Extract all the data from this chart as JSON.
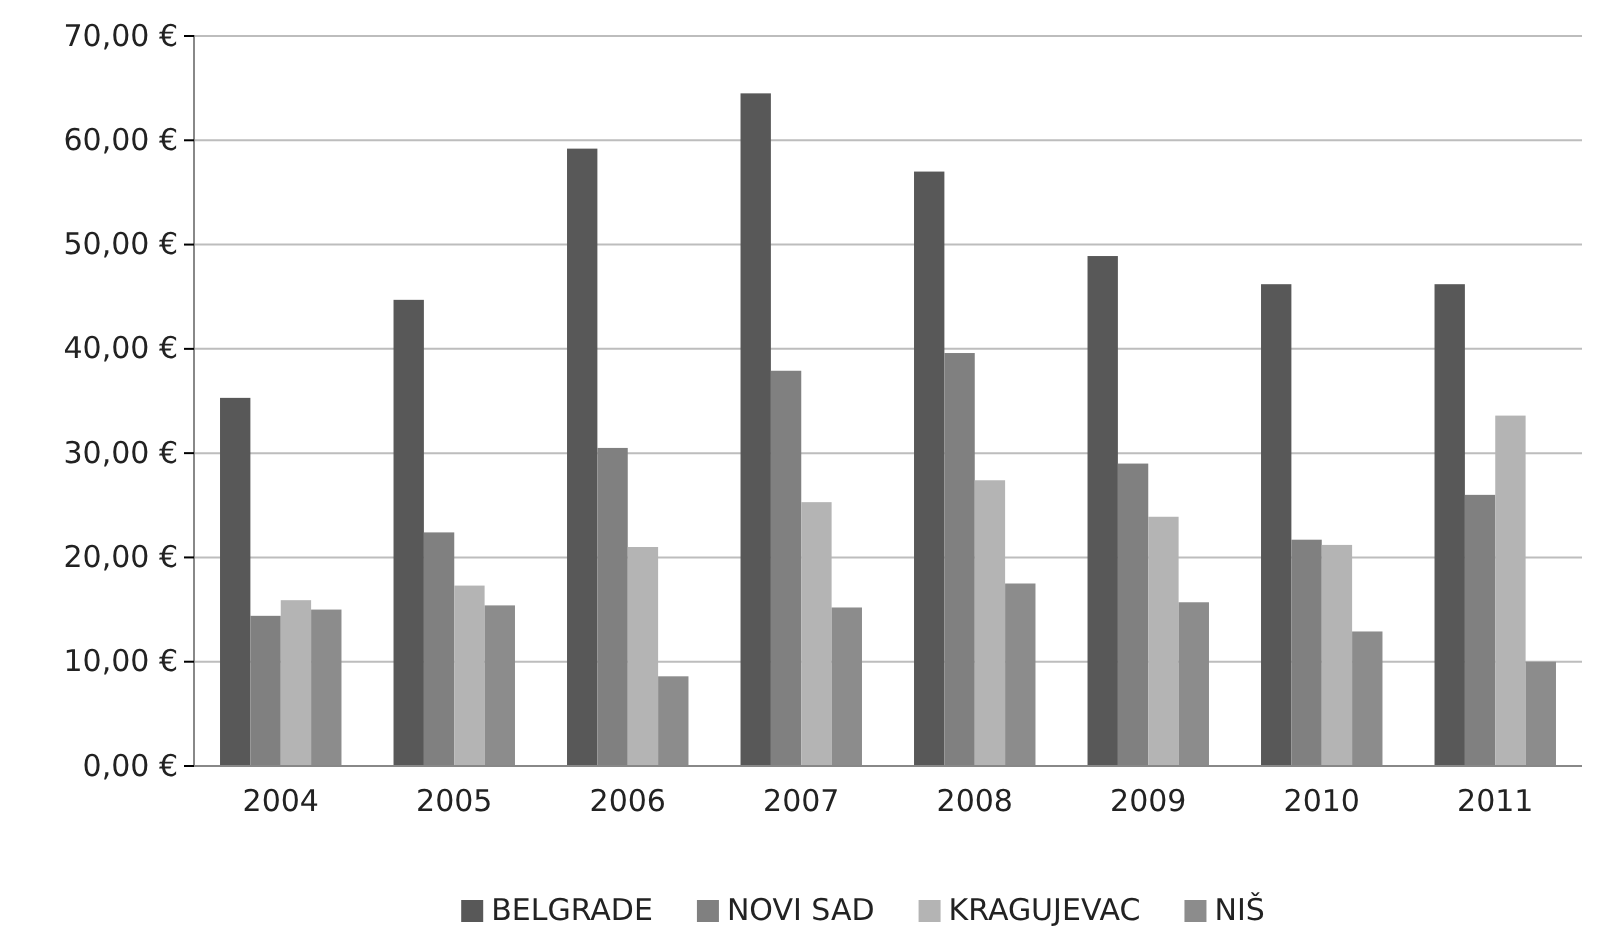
{
  "chart_data": {
    "type": "bar",
    "categories": [
      "2004",
      "2005",
      "2006",
      "2007",
      "2008",
      "2009",
      "2010",
      "2011"
    ],
    "series": [
      {
        "name": "BELGRADE",
        "color": "#585858",
        "values": [
          35.3,
          44.7,
          59.2,
          64.5,
          57.0,
          48.9,
          46.2,
          46.2
        ]
      },
      {
        "name": "NOVI SAD",
        "color": "#808080",
        "values": [
          14.4,
          22.4,
          30.5,
          37.9,
          39.6,
          29.0,
          21.7,
          26.0
        ]
      },
      {
        "name": "KRAGUJEVAC",
        "color": "#b4b4b4",
        "values": [
          15.9,
          17.3,
          21.0,
          25.3,
          27.4,
          23.9,
          21.2,
          33.6
        ]
      },
      {
        "name": "NIŠ",
        "color": "#8c8c8c",
        "values": [
          15.0,
          15.4,
          8.6,
          15.2,
          17.5,
          15.7,
          12.9,
          10.0
        ]
      }
    ],
    "ylim": [
      0,
      70
    ],
    "yticks": [
      {
        "value": 0,
        "label": "0,00 €"
      },
      {
        "value": 10,
        "label": "10,00 €"
      },
      {
        "value": 20,
        "label": "20,00 €"
      },
      {
        "value": 30,
        "label": "30,00 €"
      },
      {
        "value": 40,
        "label": "40,00 €"
      },
      {
        "value": 50,
        "label": "50,00 €"
      },
      {
        "value": 60,
        "label": "60,00 €"
      },
      {
        "value": 70,
        "label": "70,00 €"
      }
    ],
    "grid": "y",
    "legend": "bottom"
  }
}
